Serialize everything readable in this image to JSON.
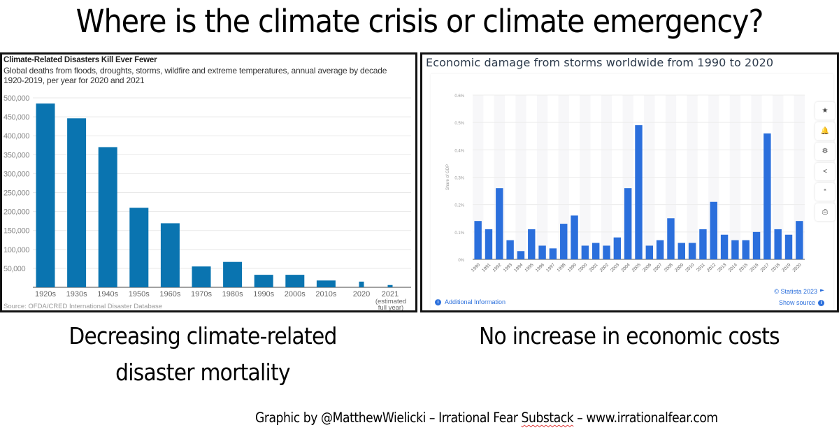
{
  "page": {
    "title": "Where is the climate crisis or climate emergency?",
    "caption_left": [
      "Decreasing climate-related",
      "disaster mortality"
    ],
    "caption_right": "No increase in economic costs",
    "credit_prefix": "Graphic by @MatthewWielicki – Irrational Fear ",
    "credit_underlined": "Substack",
    "credit_suffix": " – www.irrationalfear.com"
  },
  "right_panel": {
    "additional_info": "Additional Information",
    "copyright": "© Statista 2023",
    "show_source": "Show source",
    "toolbar": [
      {
        "name": "star-icon",
        "glyph": "★"
      },
      {
        "name": "bell-icon",
        "glyph": "🔔"
      },
      {
        "name": "gear-icon",
        "glyph": "⚙"
      },
      {
        "name": "share-icon",
        "glyph": "<"
      },
      {
        "name": "quote-icon",
        "glyph": "“"
      },
      {
        "name": "print-icon",
        "glyph": "⎙"
      }
    ]
  },
  "chart_data": [
    {
      "type": "bar",
      "title": "Climate-Related Disasters Kill Ever Fewer",
      "subtitle": "Global deaths from floods, droughts, storms, wildfire and extreme temperatures, annual average by decade 1920-2019, per year for 2020 and 2021",
      "source": "Source: OFDA/CRED International Disaster Database",
      "xlabel": "",
      "ylabel": "",
      "categories": [
        "1920s",
        "1930s",
        "1940s",
        "1950s",
        "1960s",
        "1970s",
        "1980s",
        "1990s",
        "2000s",
        "2010s",
        "2020",
        "2021"
      ],
      "category_notes": {
        "2021": [
          "(estimated",
          "full year)"
        ]
      },
      "values": [
        485000,
        446000,
        370000,
        210000,
        169000,
        55000,
        67000,
        33000,
        33000,
        18000,
        15000,
        6000
      ],
      "yticks": [
        50000,
        100000,
        150000,
        200000,
        250000,
        300000,
        350000,
        400000,
        450000,
        500000
      ],
      "ytick_labels": [
        "50,000",
        "100,000",
        "150,000",
        "200,000",
        "250,000",
        "300,000",
        "350,000",
        "400,000",
        "450,000",
        "500,000"
      ],
      "ylim": [
        0,
        500000
      ],
      "grid": true,
      "color": "#0a74b0"
    },
    {
      "type": "bar",
      "title": "Economic damage from storms worldwide from 1990 to 2020",
      "xlabel": "",
      "ylabel": "Share of GDP",
      "categories": [
        "1990",
        "1991",
        "1992",
        "1993",
        "1994",
        "1995",
        "1996",
        "1997",
        "1998",
        "1999",
        "2000",
        "2001",
        "2002",
        "2003",
        "2004",
        "2005",
        "2006",
        "2007",
        "2008",
        "2009",
        "2010",
        "2011",
        "2012",
        "2013",
        "2014",
        "2015",
        "2016",
        "2017",
        "2018",
        "2019",
        "2020"
      ],
      "values": [
        0.14,
        0.11,
        0.26,
        0.07,
        0.03,
        0.11,
        0.05,
        0.04,
        0.13,
        0.16,
        0.05,
        0.06,
        0.05,
        0.08,
        0.26,
        0.49,
        0.05,
        0.07,
        0.15,
        0.06,
        0.06,
        0.11,
        0.21,
        0.09,
        0.07,
        0.07,
        0.1,
        0.46,
        0.11,
        0.09,
        0.14
      ],
      "yticks": [
        0,
        0.1,
        0.2,
        0.3,
        0.4,
        0.5,
        0.6
      ],
      "ytick_labels": [
        "0%",
        "0.1%",
        "0.2%",
        "0.3%",
        "0.4%",
        "0.5%",
        "0.6%"
      ],
      "ylim": [
        0,
        0.6
      ],
      "unit": "%",
      "grid": true,
      "color": "#2b6fdc"
    }
  ]
}
